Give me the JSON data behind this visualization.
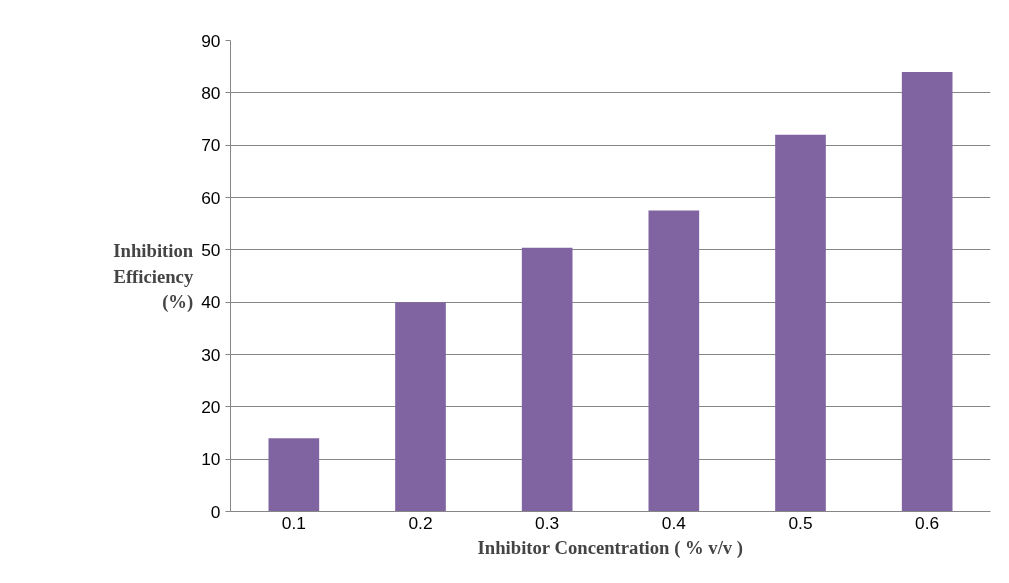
{
  "chart_data": {
    "type": "bar",
    "xlabel": "Inhibitor Concentration ( % v/v )",
    "ylabel": "Inhibition Efficiency (%)",
    "categories": [
      "0.1",
      "0.2",
      "0.3",
      "0.4",
      "0.5",
      "0.6"
    ],
    "values": [
      14,
      40,
      50.4,
      57.5,
      72,
      84
    ],
    "color": "#8064a2",
    "ylim": [
      0,
      90
    ],
    "yticks": [
      0,
      10,
      20,
      30,
      40,
      50,
      60,
      70,
      80,
      90
    ],
    "grid": "y"
  }
}
